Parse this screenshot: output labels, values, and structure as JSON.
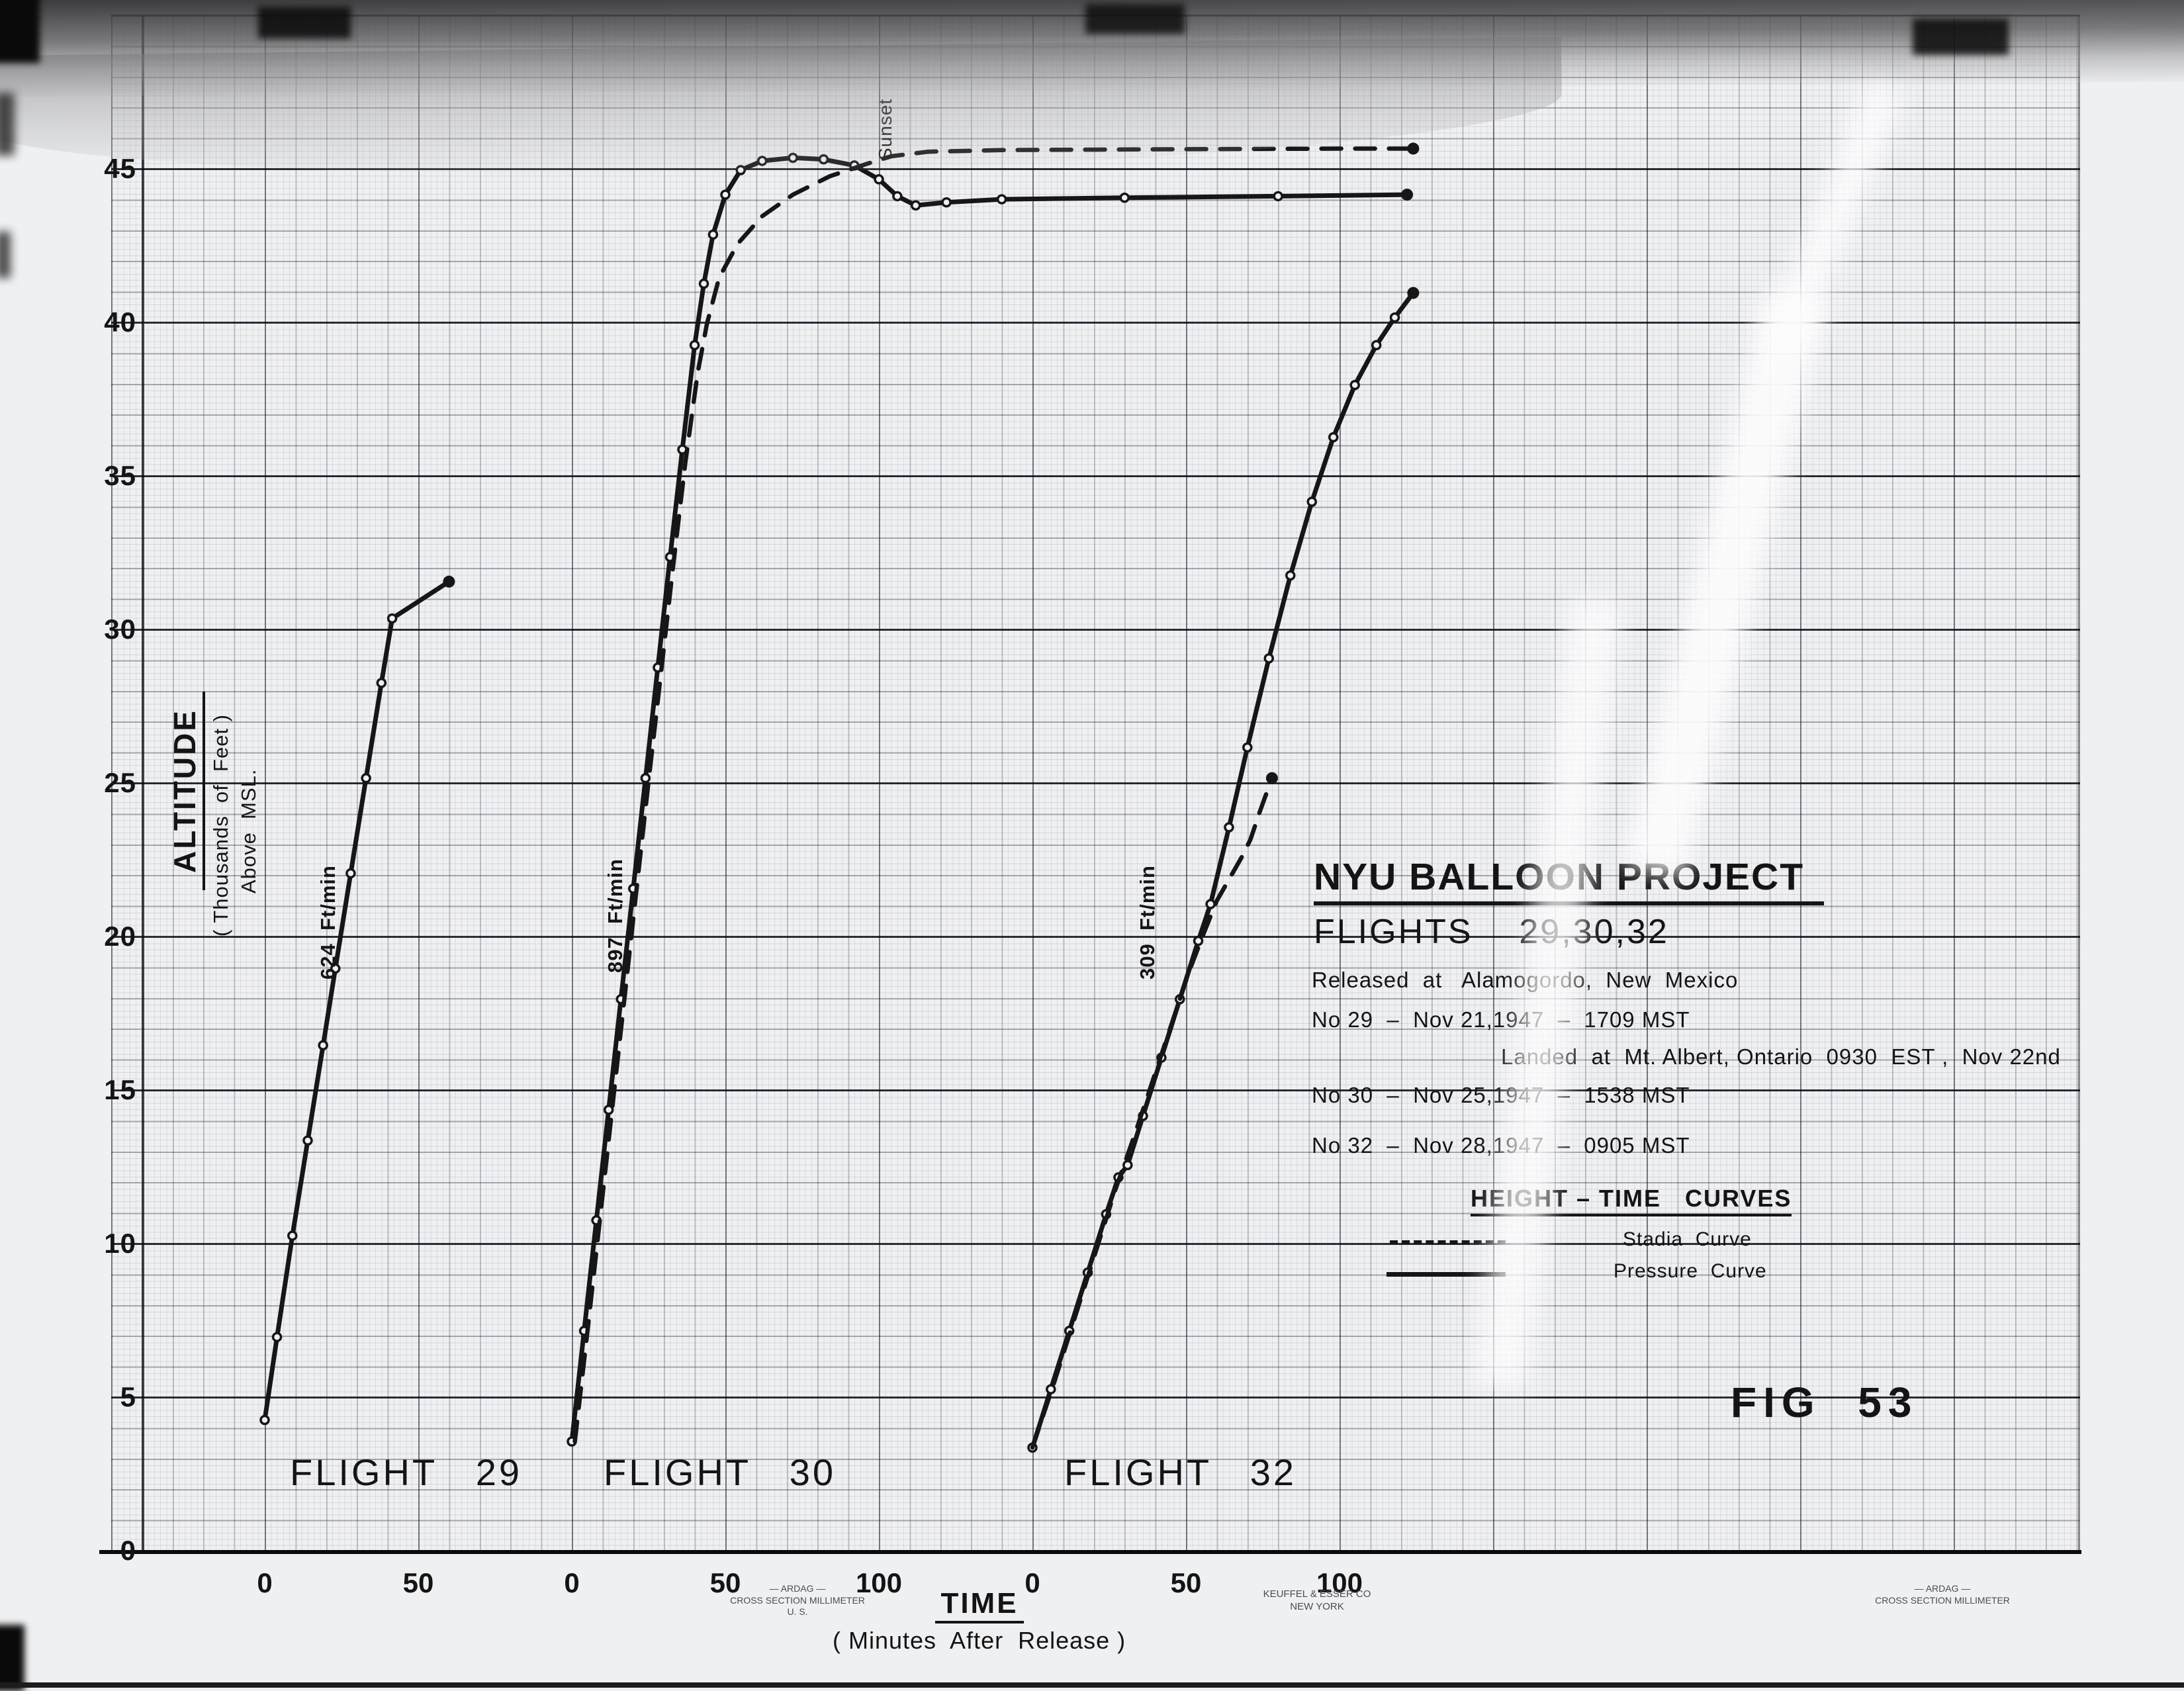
{
  "title_block": {
    "title": "NYU BALLOON PROJECT",
    "subtitle": "FLIGHTS    29,30,32",
    "released_line": "Released  at   Alamogordo,  New  Mexico",
    "flight29_line": "No 29  –  Nov 21,1947  –  1709 MST",
    "landed_line": "Landed  at  Mt. Albert, Ontario  0930  EST ,  Nov 22nd",
    "flight30_line": "No 30  –  Nov 25,1947  –  1538 MST",
    "flight32_line": "No 32  –  Nov 28,1947  –  0905 MST"
  },
  "curves_heading": "HEIGHT – TIME   CURVES",
  "legend": {
    "dashed_label": "Stadia  Curve",
    "solid_label": "Pressure  Curve"
  },
  "fig_label": "FIG  53",
  "axes": {
    "y_title": "ALTITUDE",
    "y_subtitle": "( Thousands  of  Feet )",
    "y_subtitle2": "Above  MSL.",
    "y_ticks": [
      45,
      40,
      35,
      30,
      25,
      20,
      15,
      10,
      5,
      0
    ],
    "x_title": "TIME",
    "x_subtitle": "( Minutes  After  Release )"
  },
  "flights": [
    {
      "flight": 29,
      "label": "FLIGHT   29",
      "rate_label": "624  Ft/min",
      "x_ticks": [
        0,
        50
      ]
    },
    {
      "flight": 30,
      "label": "FLIGHT   30",
      "rate_label": "897  Ft/min",
      "x_ticks": [
        0,
        50,
        100
      ]
    },
    {
      "flight": 32,
      "label": "FLIGHT   32",
      "rate_label": "309  Ft/min",
      "x_ticks": [
        0,
        50,
        100
      ]
    }
  ],
  "annotations": {
    "sunset": "Sunset"
  },
  "stamps": {
    "left": [
      "—  ARDAG  —",
      "CROSS SECTION  MILLIMETER",
      "U. S."
    ],
    "center": [
      "KEUFFEL & ESSER CO",
      "NEW YORK"
    ],
    "right": [
      "—  ARDAG  —",
      "CROSS SECTION  MILLIMETER"
    ]
  },
  "chart_data": {
    "type": "line",
    "title": "NYU Balloon Project Flights 29, 30, 32 — Height-Time Curves",
    "xlabel": "TIME (Minutes After Release)",
    "ylabel": "ALTITUDE (Thousands of Feet Above MSL)",
    "ylim": [
      0,
      47
    ],
    "grid": true,
    "legend_position": "right-middle",
    "x_axes_note": "Three separate time axes (one per flight), each labeled from 0 minutes at its own origin",
    "ascent_rates_ft_per_min": {
      "flight29": 624,
      "flight30": 897,
      "flight32": 309
    },
    "series": [
      {
        "flight": 29,
        "name": "Flight 29 Pressure Curve",
        "style": "solid",
        "markers": "open",
        "end_dot": true,
        "points": [
          [
            0,
            4.3
          ],
          [
            4,
            7.0
          ],
          [
            9,
            10.3
          ],
          [
            14,
            13.4
          ],
          [
            19,
            16.5
          ],
          [
            23,
            19.0
          ],
          [
            28,
            22.1
          ],
          [
            33,
            25.2
          ],
          [
            38,
            28.3
          ],
          [
            41.5,
            30.4
          ],
          [
            60,
            31.6
          ]
        ]
      },
      {
        "flight": 30,
        "name": "Flight 30 Pressure Curve",
        "style": "solid",
        "markers": "open",
        "end_dot": true,
        "points": [
          [
            0,
            3.6
          ],
          [
            4,
            7.2
          ],
          [
            8,
            10.8
          ],
          [
            12,
            14.4
          ],
          [
            16,
            18.0
          ],
          [
            20,
            21.6
          ],
          [
            24,
            25.2
          ],
          [
            28,
            28.8
          ],
          [
            32,
            32.4
          ],
          [
            36,
            35.9
          ],
          [
            40,
            39.3
          ],
          [
            43,
            41.3
          ],
          [
            46,
            42.9
          ],
          [
            50,
            44.2
          ],
          [
            55,
            45.0
          ],
          [
            62,
            45.3
          ],
          [
            72,
            45.4
          ],
          [
            82,
            45.35
          ],
          [
            92,
            45.15
          ],
          [
            100,
            44.7
          ],
          [
            106,
            44.15
          ],
          [
            112,
            43.85
          ],
          [
            122,
            43.95
          ],
          [
            140,
            44.05
          ],
          [
            180,
            44.1
          ],
          [
            230,
            44.15
          ],
          [
            272,
            44.2
          ]
        ]
      },
      {
        "flight": 30,
        "name": "Flight 30 Stadia Curve",
        "style": "dashed",
        "markers": "none",
        "end_dot": true,
        "points": [
          [
            1,
            3.6
          ],
          [
            5,
            7.1
          ],
          [
            9,
            10.7
          ],
          [
            13,
            14.3
          ],
          [
            17,
            17.9
          ],
          [
            21,
            21.5
          ],
          [
            25,
            25.1
          ],
          [
            29,
            28.6
          ],
          [
            33,
            32.1
          ],
          [
            37,
            35.5
          ],
          [
            41,
            38.4
          ],
          [
            44,
            40.0
          ],
          [
            48,
            41.5
          ],
          [
            54,
            42.6
          ],
          [
            62,
            43.5
          ],
          [
            72,
            44.2
          ],
          [
            84,
            44.8
          ],
          [
            96,
            45.2
          ],
          [
            104,
            45.45
          ],
          [
            116,
            45.6
          ],
          [
            140,
            45.65
          ],
          [
            200,
            45.68
          ],
          [
            250,
            45.7
          ],
          [
            274,
            45.7
          ]
        ]
      },
      {
        "flight": 32,
        "name": "Flight 32 Pressure Curve",
        "style": "solid",
        "markers": "open",
        "end_dot": true,
        "points": [
          [
            0,
            3.4
          ],
          [
            6,
            5.3
          ],
          [
            12,
            7.2
          ],
          [
            18,
            9.1
          ],
          [
            24,
            11.0
          ],
          [
            28,
            12.2
          ],
          [
            31,
            12.6
          ],
          [
            36,
            14.2
          ],
          [
            42,
            16.1
          ],
          [
            48,
            18.0
          ],
          [
            54,
            19.9
          ],
          [
            58,
            21.1
          ],
          [
            64,
            23.6
          ],
          [
            70,
            26.2
          ],
          [
            77,
            29.1
          ],
          [
            84,
            31.8
          ],
          [
            91,
            34.2
          ],
          [
            98,
            36.3
          ],
          [
            105,
            38.0
          ],
          [
            112,
            39.3
          ],
          [
            118,
            40.2
          ],
          [
            124,
            41.0
          ]
        ]
      },
      {
        "flight": 32,
        "name": "Flight 32 Stadia Curve",
        "style": "dashed",
        "markers": "none",
        "end_dot": true,
        "points": [
          [
            0,
            3.4
          ],
          [
            7,
            5.5
          ],
          [
            14,
            7.7
          ],
          [
            21,
            9.9
          ],
          [
            27,
            11.8
          ],
          [
            33,
            13.5
          ],
          [
            39,
            15.3
          ],
          [
            45,
            17.1
          ],
          [
            51,
            18.9
          ],
          [
            56,
            20.2
          ],
          [
            60,
            21.2
          ],
          [
            64,
            21.9
          ],
          [
            68,
            22.6
          ],
          [
            71,
            23.2
          ],
          [
            74,
            24.1
          ],
          [
            78,
            25.2
          ]
        ]
      }
    ]
  }
}
